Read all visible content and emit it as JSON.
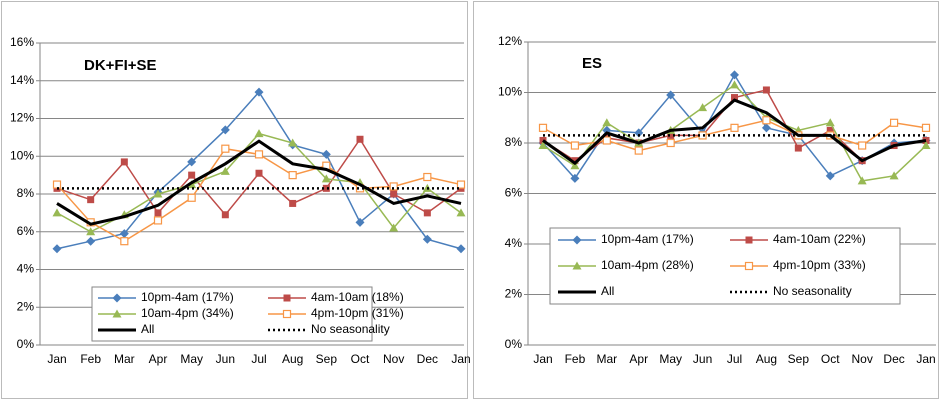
{
  "chart_data": [
    {
      "type": "line",
      "title": "DK+FI+SE",
      "categories": [
        "Jan",
        "Feb",
        "Mar",
        "Apr",
        "May",
        "Jun",
        "Jul",
        "Aug",
        "Sep",
        "Oct",
        "Nov",
        "Dec",
        "Jan"
      ],
      "ylim": [
        0,
        16
      ],
      "yticks": [
        {
          "value": 0,
          "label": "0%"
        },
        {
          "value": 2,
          "label": "2%"
        },
        {
          "value": 4,
          "label": "4%"
        },
        {
          "value": 6,
          "label": "6%"
        },
        {
          "value": 8,
          "label": "8%"
        },
        {
          "value": 10,
          "label": "10%"
        },
        {
          "value": 12,
          "label": "12%"
        },
        {
          "value": 14,
          "label": "14%"
        },
        {
          "value": 16,
          "label": "16%"
        }
      ],
      "grid": true,
      "series": [
        {
          "name": "10pm-4am (17%)",
          "color": "#4a7ebb",
          "marker": "diamond",
          "values": [
            5.1,
            5.5,
            5.9,
            8.1,
            9.7,
            11.4,
            13.4,
            10.6,
            10.1,
            6.5,
            8.0,
            5.6,
            5.1
          ]
        },
        {
          "name": "4am-10am (18%)",
          "color": "#be4b48",
          "marker": "square",
          "values": [
            8.3,
            7.7,
            9.7,
            7.0,
            9.0,
            6.9,
            9.1,
            7.5,
            8.3,
            10.9,
            8.0,
            7.0,
            8.3
          ]
        },
        {
          "name": "10am-4pm (34%)",
          "color": "#98b954",
          "marker": "triangle",
          "values": [
            7.0,
            6.0,
            6.9,
            8.0,
            8.5,
            9.2,
            11.2,
            10.7,
            8.8,
            8.6,
            6.2,
            8.3,
            7.0
          ]
        },
        {
          "name": "4pm-10pm (31%)",
          "color": "#f79646",
          "marker": "open-square",
          "values": [
            8.5,
            6.5,
            5.5,
            6.6,
            7.8,
            10.4,
            10.1,
            9.0,
            9.5,
            8.3,
            8.4,
            8.9,
            8.5
          ]
        },
        {
          "name": "All",
          "color": "#000000",
          "width": 3,
          "values": [
            7.5,
            6.4,
            6.8,
            7.4,
            8.6,
            9.6,
            10.8,
            9.6,
            9.3,
            8.5,
            7.5,
            7.9,
            7.5
          ]
        },
        {
          "name": "No seasonality",
          "color": "#000000",
          "dash": "dotted",
          "values": [
            8.3,
            8.3,
            8.3,
            8.3,
            8.3,
            8.3,
            8.3,
            8.3,
            8.3,
            8.3,
            8.3,
            8.3,
            8.3
          ]
        }
      ]
    },
    {
      "type": "line",
      "title": "ES",
      "categories": [
        "Jan",
        "Feb",
        "Mar",
        "Apr",
        "May",
        "Jun",
        "Jul",
        "Aug",
        "Sep",
        "Oct",
        "Nov",
        "Dec",
        "Jan"
      ],
      "ylim": [
        0,
        12
      ],
      "yticks": [
        {
          "value": 0,
          "label": "0%"
        },
        {
          "value": 2,
          "label": "2%"
        },
        {
          "value": 4,
          "label": "4%"
        },
        {
          "value": 6,
          "label": "6%"
        },
        {
          "value": 8,
          "label": "8%"
        },
        {
          "value": 10,
          "label": "10%"
        },
        {
          "value": 12,
          "label": "12%"
        }
      ],
      "grid": true,
      "series": [
        {
          "name": "10pm-4am (17%)",
          "color": "#4a7ebb",
          "marker": "diamond",
          "values": [
            8.0,
            6.6,
            8.5,
            8.4,
            9.9,
            8.4,
            10.7,
            8.6,
            8.3,
            6.7,
            7.3,
            8.0,
            8.1
          ]
        },
        {
          "name": "4am-10am (22%)",
          "color": "#be4b48",
          "marker": "square",
          "values": [
            8.1,
            7.3,
            8.2,
            8.0,
            8.3,
            8.3,
            9.8,
            10.1,
            7.8,
            8.5,
            7.3,
            7.9,
            8.1
          ]
        },
        {
          "name": "10am-4pm (28%)",
          "color": "#98b954",
          "marker": "triangle",
          "values": [
            7.9,
            7.1,
            8.8,
            8.0,
            8.5,
            9.4,
            10.3,
            9.0,
            8.5,
            8.8,
            6.5,
            6.7,
            7.9
          ]
        },
        {
          "name": "4pm-10pm (33%)",
          "color": "#f79646",
          "marker": "open-square",
          "values": [
            8.6,
            7.9,
            8.1,
            7.7,
            8.0,
            8.3,
            8.6,
            8.9,
            8.3,
            8.3,
            7.9,
            8.8,
            8.6
          ]
        },
        {
          "name": "All",
          "color": "#000000",
          "width": 3,
          "values": [
            8.1,
            7.2,
            8.4,
            8.0,
            8.5,
            8.6,
            9.7,
            9.2,
            8.3,
            8.3,
            7.3,
            7.9,
            8.1
          ]
        },
        {
          "name": "No seasonality",
          "color": "#000000",
          "dash": "dotted",
          "values": [
            8.3,
            8.3,
            8.3,
            8.3,
            8.3,
            8.3,
            8.3,
            8.3,
            8.3,
            8.3,
            8.3,
            8.3,
            8.3
          ]
        }
      ]
    }
  ]
}
